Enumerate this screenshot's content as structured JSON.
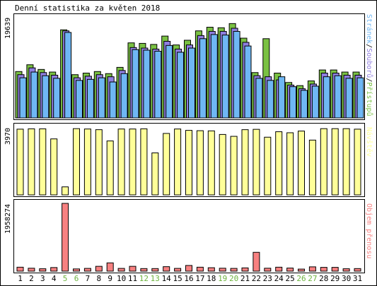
{
  "title": "Denní statistika za květen 2018",
  "colors": {
    "hits": "#7ac143",
    "files": "#8f7ee0",
    "pages": "#6fb7f4",
    "visits": "#ffff99",
    "kbytes": "#f78181",
    "weekend": "#6db33f",
    "weekday": "#000000",
    "frame": "#000000"
  },
  "chart_data": [
    {
      "type": "bar",
      "panel": "top",
      "categories": [
        "1",
        "2",
        "3",
        "4",
        "5",
        "6",
        "7",
        "8",
        "9",
        "10",
        "11",
        "12",
        "13",
        "14",
        "15",
        "16",
        "17",
        "18",
        "19",
        "20",
        "21",
        "22",
        "23",
        "24",
        "25",
        "26",
        "27",
        "28",
        "29",
        "30",
        "31"
      ],
      "ymax_label": "19639",
      "ylim": [
        0,
        19639
      ],
      "legend_parts": [
        "Stránek",
        "Souborů",
        "Přístupů"
      ],
      "series": [
        {
          "name": "Přístupů",
          "color": "#7ac143",
          "values": [
            8900,
            10200,
            9300,
            8800,
            16900,
            8300,
            8600,
            8900,
            8500,
            9700,
            14400,
            14300,
            14100,
            15700,
            14000,
            14900,
            16700,
            17400,
            17300,
            18100,
            15300,
            8700,
            15200,
            8600,
            6800,
            6200,
            7100,
            9200,
            9200,
            8800,
            8800
          ]
        },
        {
          "name": "Souborů",
          "color": "#8f7ee0",
          "values": [
            8300,
            9600,
            8700,
            8200,
            16700,
            7700,
            8000,
            8300,
            7900,
            9100,
            13500,
            13400,
            13200,
            14700,
            13200,
            14000,
            15800,
            16600,
            16600,
            17200,
            14500,
            8100,
            7900,
            7300,
            6300,
            5600,
            6500,
            8600,
            8600,
            8200,
            8200
          ]
        },
        {
          "name": "Stránek",
          "color": "#6fb7f4",
          "values": [
            7700,
            8800,
            8100,
            7600,
            16400,
            7200,
            7400,
            7700,
            6900,
            8500,
            13100,
            13000,
            12800,
            13900,
            12600,
            13400,
            15200,
            16000,
            15900,
            16600,
            13800,
            7600,
            7200,
            7900,
            6000,
            5300,
            6100,
            7900,
            8100,
            7600,
            7700
          ]
        }
      ]
    },
    {
      "type": "bar",
      "panel": "middle",
      "categories": [
        "1",
        "2",
        "3",
        "4",
        "5",
        "6",
        "7",
        "8",
        "9",
        "10",
        "11",
        "12",
        "13",
        "14",
        "15",
        "16",
        "17",
        "18",
        "19",
        "20",
        "21",
        "22",
        "23",
        "24",
        "25",
        "26",
        "27",
        "28",
        "29",
        "30",
        "31"
      ],
      "ymax_label": "3970",
      "ylim": [
        0,
        3970
      ],
      "legend_parts": [
        "Návštěv"
      ],
      "series": [
        {
          "name": "Návštěv",
          "color": "#ffff99",
          "values": [
            3850,
            3870,
            3870,
            3280,
            470,
            3880,
            3860,
            3820,
            3160,
            3860,
            3860,
            3870,
            2460,
            3600,
            3860,
            3780,
            3760,
            3750,
            3540,
            3430,
            3820,
            3840,
            3380,
            3700,
            3640,
            3740,
            3210,
            3880,
            3880,
            3880,
            3850
          ]
        }
      ]
    },
    {
      "type": "bar",
      "panel": "bottom",
      "categories": [
        "1",
        "2",
        "3",
        "4",
        "5",
        "6",
        "7",
        "8",
        "9",
        "10",
        "11",
        "12",
        "13",
        "14",
        "15",
        "16",
        "17",
        "18",
        "19",
        "20",
        "21",
        "22",
        "23",
        "24",
        "25",
        "26",
        "27",
        "28",
        "29",
        "30",
        "31"
      ],
      "ymax_label": "1958274",
      "ylim": [
        0,
        1958274
      ],
      "legend_parts": [
        "Objem přenosu"
      ],
      "series": [
        {
          "name": "Objem přenosu",
          "color": "#f78181",
          "values": [
            115000,
            85000,
            70000,
            105000,
            1958274,
            65000,
            80000,
            140000,
            240000,
            80000,
            140000,
            75000,
            75000,
            130000,
            80000,
            165000,
            115000,
            100000,
            85000,
            80000,
            95000,
            545000,
            85000,
            115000,
            90000,
            60000,
            125000,
            110000,
            110000,
            70000,
            75000
          ]
        }
      ]
    }
  ],
  "weekend_days": [
    "5",
    "6",
    "12",
    "13",
    "19",
    "20",
    "26",
    "27"
  ]
}
